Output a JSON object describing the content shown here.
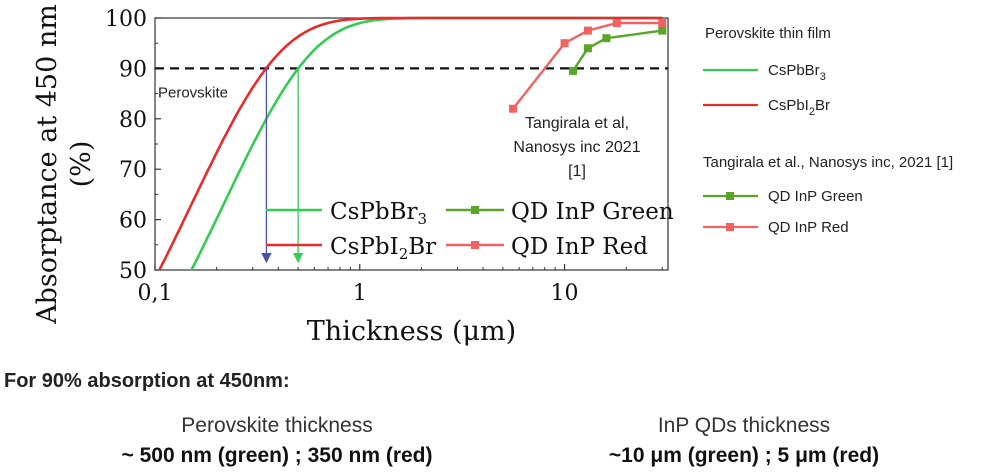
{
  "chart_data": {
    "type": "line",
    "xscale": "log",
    "xlim": [
      0.1,
      32
    ],
    "ylim": [
      50,
      100
    ],
    "xlabel": "Thickness (μm)",
    "ylabel": "Absorptance at 450 nm (%)",
    "x_ticks": [
      {
        "v": 0.1,
        "label": "0,1"
      },
      {
        "v": 1,
        "label": "1"
      },
      {
        "v": 10,
        "label": "10"
      }
    ],
    "y_ticks": [
      50,
      60,
      70,
      80,
      90,
      100
    ],
    "threshold": {
      "value": 90,
      "label": "Perovskite"
    },
    "series": [
      {
        "name": "CsPbBr3",
        "color": "#33cc55",
        "marker": "none",
        "absorption_coeff_per_um": 4.6,
        "x_at_90": 0.5,
        "x_start": 0.1,
        "x_end": 30
      },
      {
        "name": "CsPbI2Br",
        "color": "#e62c2c",
        "marker": "none",
        "absorption_coeff_per_um": 6.6,
        "x_at_90": 0.35,
        "x_start": 0.1,
        "x_end": 30
      },
      {
        "name": "QD InP Green",
        "color": "#5aa528",
        "marker": "square",
        "points": [
          [
            11,
            89.5
          ],
          [
            13,
            94
          ],
          [
            16,
            96
          ],
          [
            30,
            97.5
          ]
        ]
      },
      {
        "name": "QD InP Red",
        "color": "#f26262",
        "marker": "square",
        "points": [
          [
            5.6,
            82
          ],
          [
            10,
            95
          ],
          [
            13,
            97.5
          ],
          [
            18,
            99
          ],
          [
            30,
            99
          ]
        ]
      }
    ],
    "annotation": [
      "Tangirala et al,",
      "Nanosys inc 2021",
      "[1]"
    ],
    "inner_legend": {
      "col1": [
        {
          "main": "CsPbBr",
          "sub": "3",
          "tail": "",
          "color": "#33cc55",
          "marker": false
        },
        {
          "main": "CsPbI",
          "sub": "2",
          "tail": "Br",
          "color": "#e62c2c",
          "marker": false
        }
      ],
      "col2": [
        {
          "label": "QD InP Green",
          "color": "#5aa528",
          "marker": true
        },
        {
          "label": "QD InP Red",
          "color": "#f26262",
          "marker": true
        }
      ]
    },
    "side_legend": {
      "heading1": "Perovskite thin film",
      "items1": [
        {
          "main": "CsPbBr",
          "sub": "3",
          "tail": "",
          "color": "#33cc55",
          "marker": false
        },
        {
          "main": "CsPbI",
          "sub": "2",
          "tail": "Br",
          "color": "#e62c2c",
          "marker": false
        }
      ],
      "heading2": "Tangirala et al., Nanosys inc, 2021 [1]",
      "items2": [
        {
          "main": "QD InP Green",
          "sub": "",
          "tail": "",
          "color": "#5aa528",
          "marker": true
        },
        {
          "main": "QD InP Red",
          "sub": "",
          "tail": "",
          "color": "#f26262",
          "marker": true
        }
      ]
    }
  },
  "summary": {
    "title": "For 90% absorption at 450nm:",
    "left_head": "Perovskite thickness",
    "left_value": "~ 500 nm (green) ; 350 nm (red)",
    "right_head": "InP QDs thickness",
    "right_value": "~10 μm (green)  ; 5 μm (red)"
  }
}
